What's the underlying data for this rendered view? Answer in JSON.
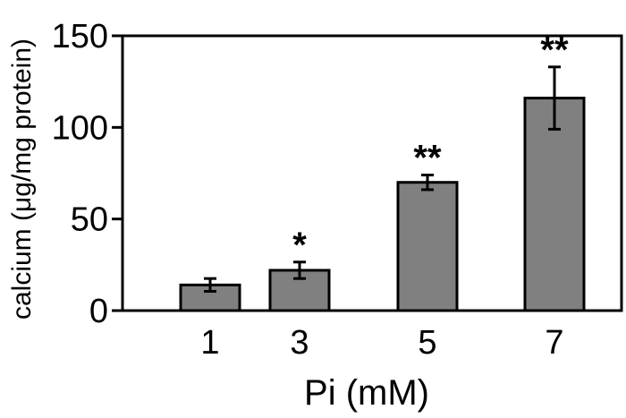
{
  "chart_data": {
    "type": "bar",
    "title": "",
    "xlabel": "Pi (mM)",
    "ylabel": "calcium (μg/mg protein)",
    "categories": [
      "1",
      "3",
      "5",
      "7"
    ],
    "values": [
      14,
      22,
      70,
      116
    ],
    "errors": [
      3.5,
      4.5,
      4,
      17
    ],
    "annotations": [
      "",
      "*",
      "**",
      "**"
    ],
    "ylim": [
      0,
      150
    ],
    "yticks": [
      0,
      50,
      100,
      150
    ],
    "grid": false,
    "legend": "none",
    "colors": {
      "bar_fill": "#808080",
      "bar_stroke": "#000000"
    }
  }
}
